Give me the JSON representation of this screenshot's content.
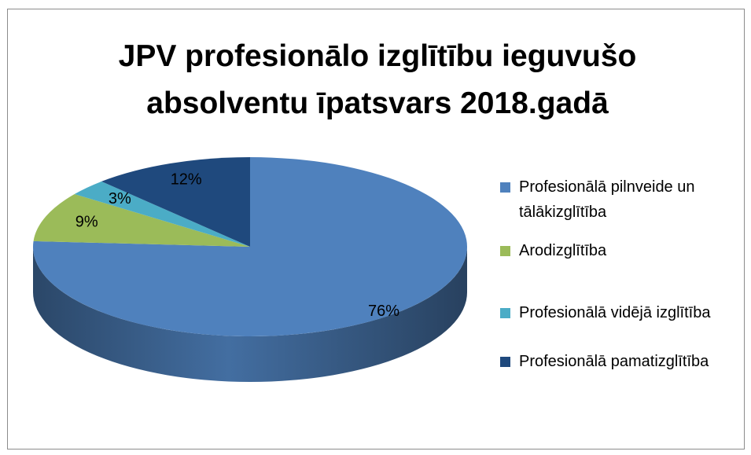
{
  "chart_data": {
    "type": "pie3d",
    "title": "JPV profesionālo izglītību ieguvušo absolventu īpatsvars 2018.gadā",
    "categories": [
      "Profesionālā pilnveide un tālākizglītība",
      "Arodizglītība",
      "Profesionālā vidējā izglītība",
      "Profesionālā pamatizglītība"
    ],
    "values": [
      76,
      9,
      3,
      12
    ],
    "value_labels": [
      "76%",
      "9%",
      "3%",
      "12%"
    ],
    "colors": [
      "#4f81bd",
      "#9bbb59",
      "#4bacc6",
      "#1f497d"
    ],
    "legend": "right"
  }
}
